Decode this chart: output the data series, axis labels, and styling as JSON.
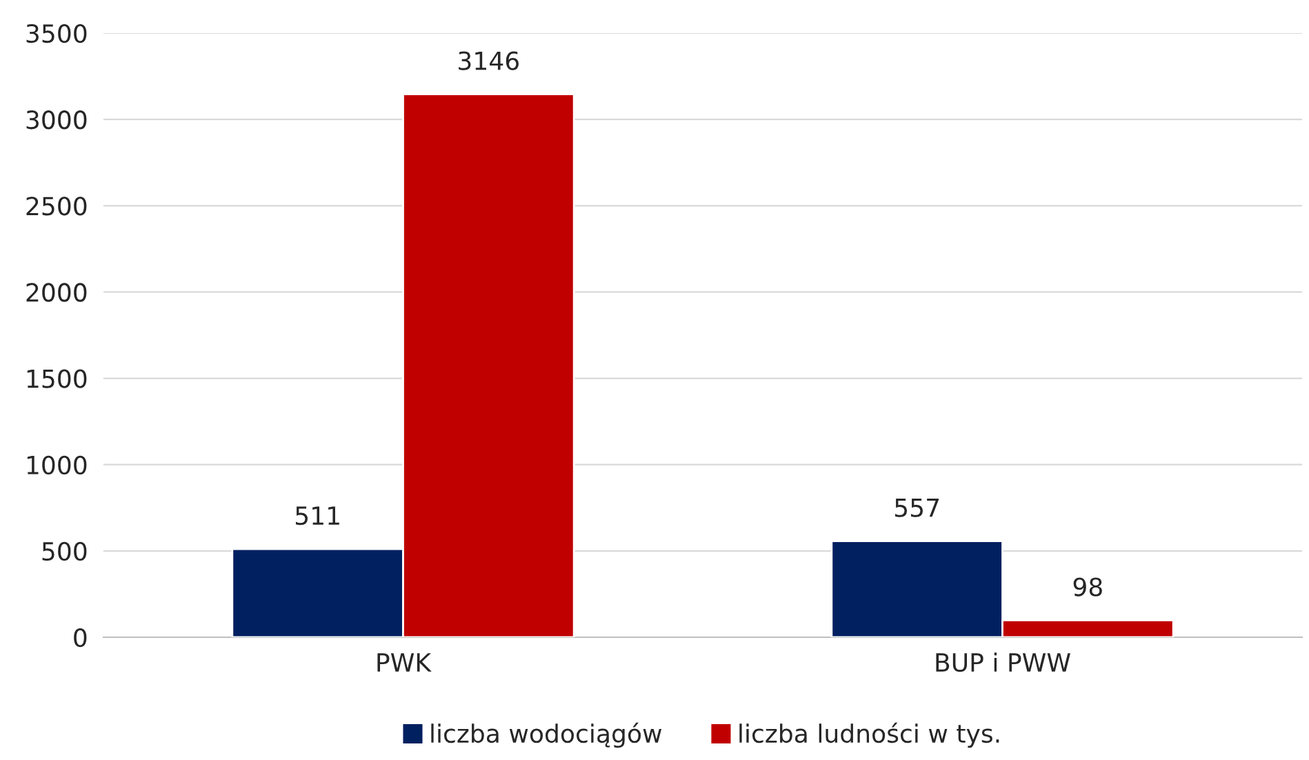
{
  "chart_data": {
    "type": "bar",
    "categories": [
      "PWK",
      "BUP i PWW"
    ],
    "series": [
      {
        "name": "liczba wodociągów",
        "color": "#002060",
        "values": [
          511,
          557
        ]
      },
      {
        "name": "liczba ludności w tys.",
        "color": "#c00000",
        "values": [
          3146,
          98
        ]
      }
    ],
    "ylim": [
      0,
      3500
    ],
    "yticks": [
      0,
      500,
      1000,
      1500,
      2000,
      2500,
      3000,
      3500
    ],
    "grid": "y",
    "legend": "bottom",
    "data_labels": true
  }
}
